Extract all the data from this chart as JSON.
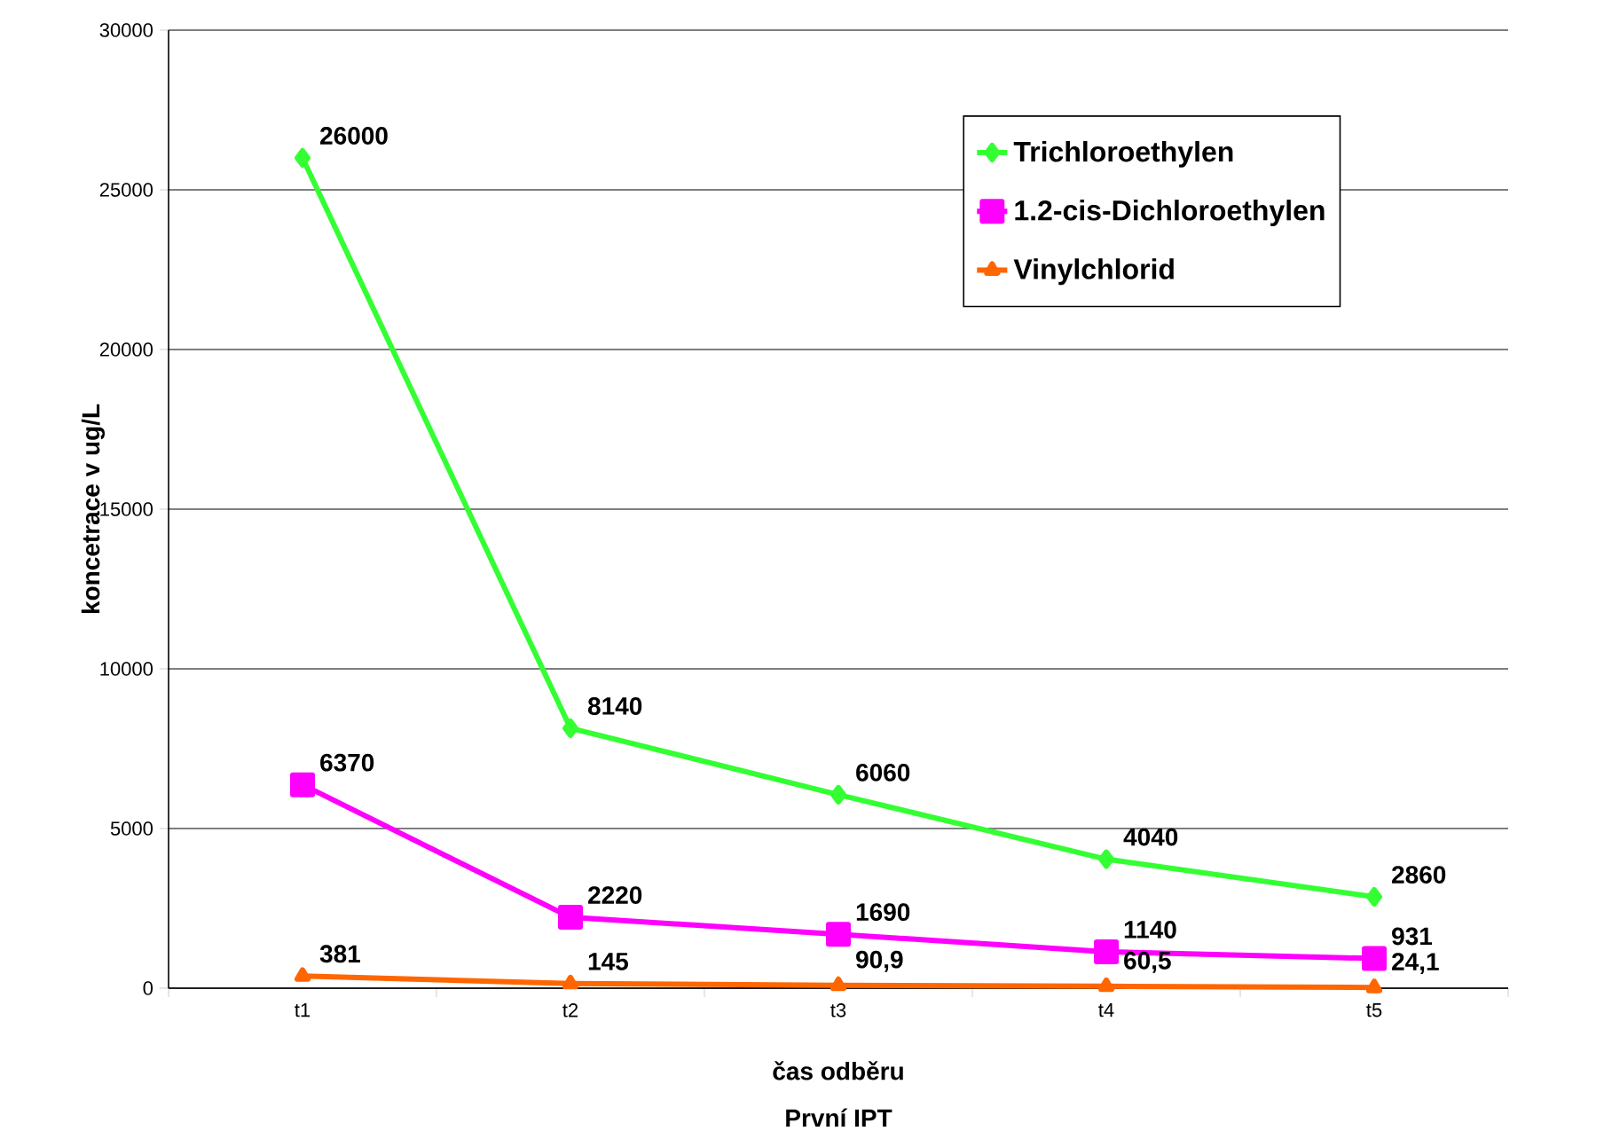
{
  "chart_data": {
    "type": "line",
    "xlabel": "čas odběru",
    "ylabel": "koncetrace v ug/L",
    "annotations": [
      "První IPT"
    ],
    "categories": [
      "t1",
      "t2",
      "t3",
      "t4",
      "t5"
    ],
    "series": [
      {
        "name": "Trichloroethylen",
        "color": "#33ff33",
        "marker": "diamond",
        "values": [
          26000,
          8140,
          6060,
          4040,
          2860
        ],
        "value_labels": [
          "26000",
          "8140",
          "6060",
          "4040",
          "2860"
        ]
      },
      {
        "name": "1.2-cis-Dichloroethylen",
        "color": "#ff00ff",
        "marker": "square",
        "values": [
          6370,
          2220,
          1690,
          1140,
          931
        ],
        "value_labels": [
          "6370",
          "2220",
          "1690",
          "1140",
          "931"
        ]
      },
      {
        "name": "Vinylchlorid",
        "color": "#ff6600",
        "marker": "triangle",
        "values": [
          381,
          145,
          90.9,
          60.5,
          24.1
        ],
        "value_labels": [
          "381",
          "145",
          "90,9",
          "60,5",
          "24,1"
        ]
      }
    ],
    "ylim": [
      0,
      30000
    ],
    "yticks": [
      0,
      5000,
      10000,
      15000,
      20000,
      25000,
      30000
    ],
    "grid": "y",
    "legend": "top right",
    "line_style": "solid"
  }
}
